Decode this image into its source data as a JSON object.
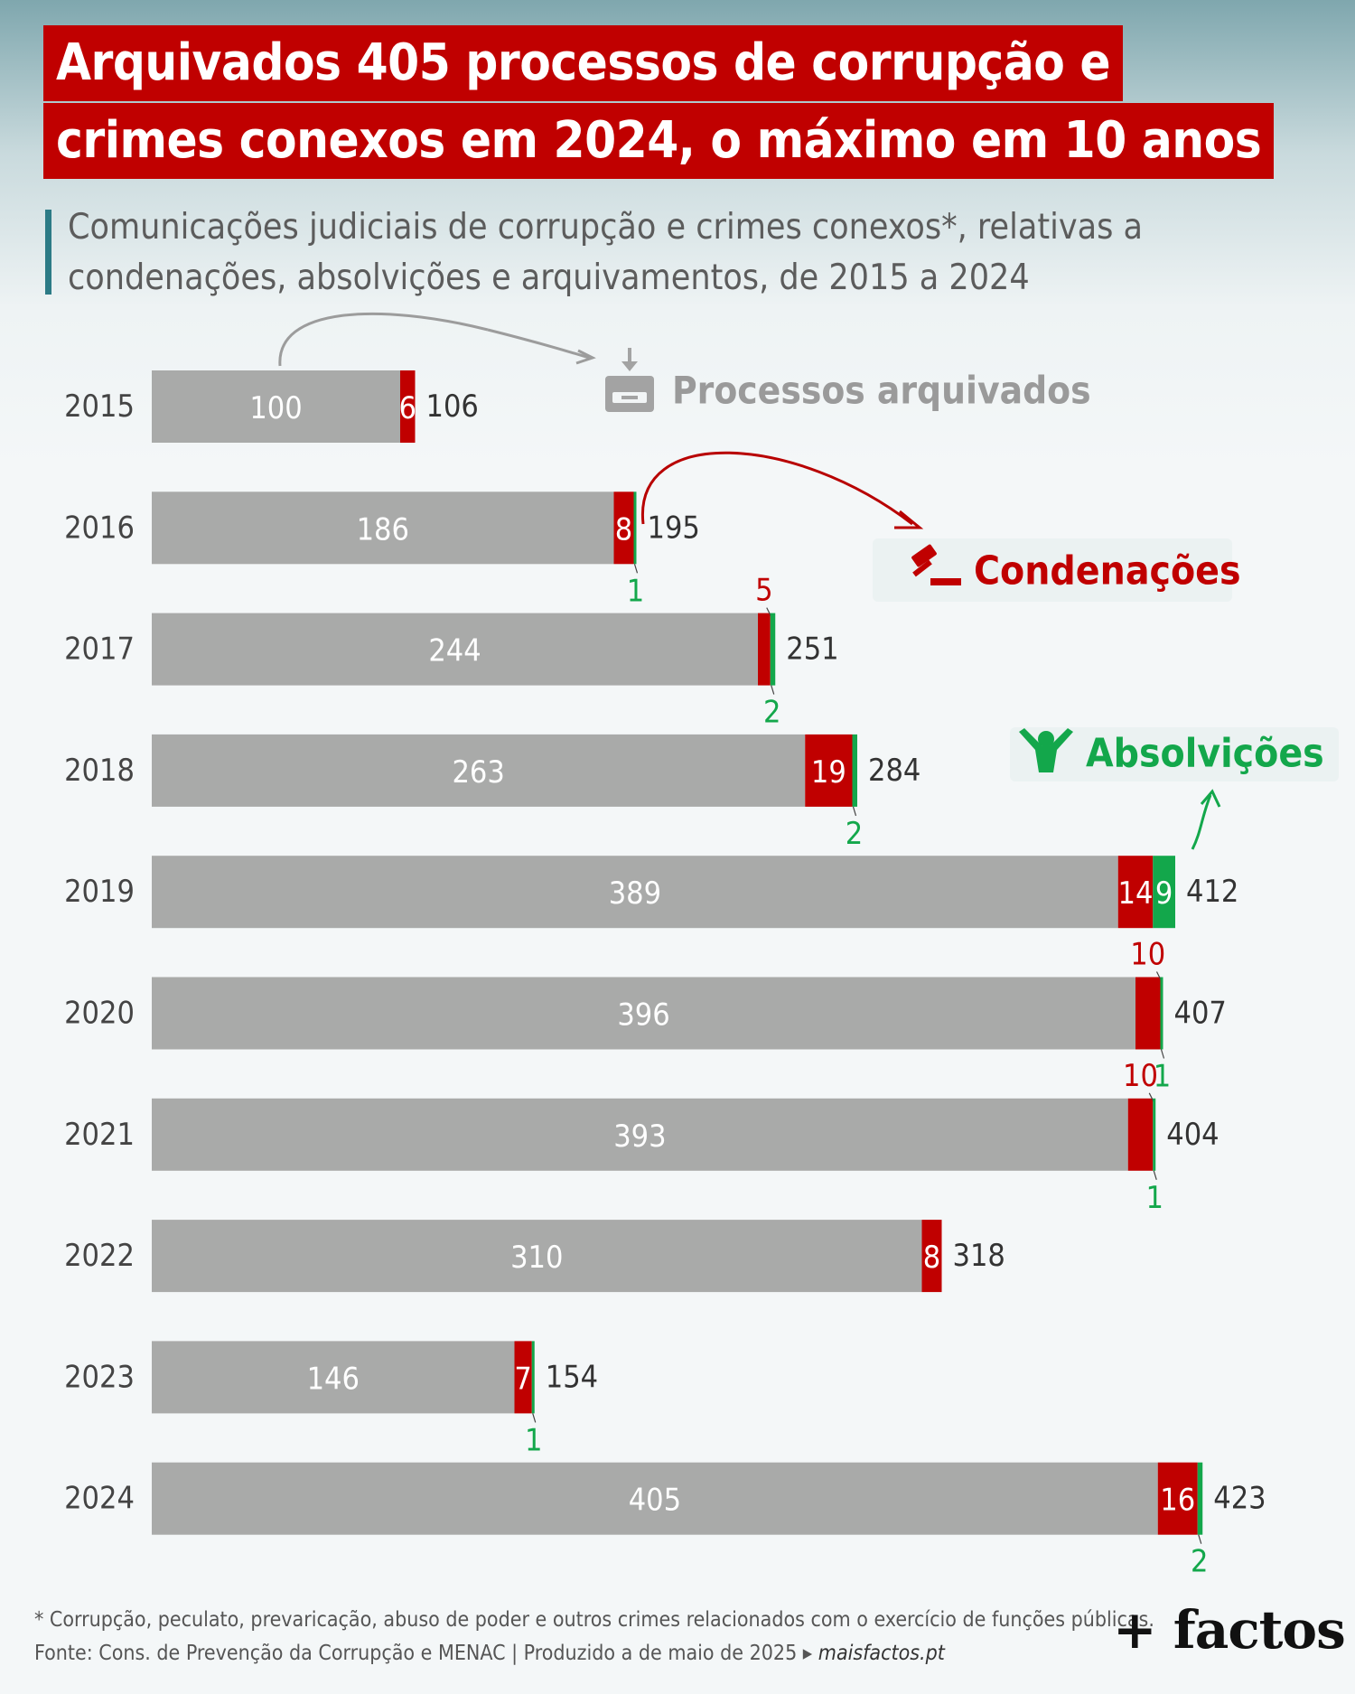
{
  "title": {
    "line1": "Arquivados 405 processos de corrupção e",
    "line2": "crimes conexos em 2024, o máximo em 10 anos"
  },
  "subtitle": "Comunicações judiciais de corrupção e crimes conexos*, relativas a condenações, absolvições e arquivamentos, de 2015 a 2024",
  "footnote": "* Corrupção, peculato, prevaricação, abuso de poder e outros crimes relacionados com o exercício de funções públicas.",
  "source": {
    "text": "Fonte: Cons. de Prevenção da Corrupção e MENAC  |  Produzido a  de maio de 2025 ▸ ",
    "site": "maisfactos.pt"
  },
  "brand": "+ factos",
  "colors": {
    "arquivados": "#a9aaa9",
    "condenacoes": "#c00000",
    "absolvicoes": "#13a74b",
    "total_text": "#333333"
  },
  "legend": {
    "arquivados": {
      "label": "Processos arquivados",
      "icon": "archive-box-icon"
    },
    "condenacoes": {
      "label": "Condenações",
      "icon": "gavel-icon"
    },
    "absolvicoes": {
      "label": "Absolvições",
      "icon": "person-raised-arms-icon"
    }
  },
  "chart_data": {
    "type": "bar",
    "orientation": "horizontal",
    "stacked": true,
    "categories": [
      "2015",
      "2016",
      "2017",
      "2018",
      "2019",
      "2020",
      "2021",
      "2022",
      "2023",
      "2024"
    ],
    "series": [
      {
        "name": "Processos arquivados",
        "values": [
          100,
          186,
          244,
          263,
          389,
          396,
          393,
          310,
          146,
          405
        ]
      },
      {
        "name": "Condenações",
        "values": [
          6,
          8,
          5,
          19,
          14,
          10,
          10,
          8,
          7,
          16
        ]
      },
      {
        "name": "Absolvições",
        "values": [
          0,
          1,
          2,
          2,
          9,
          1,
          1,
          0,
          1,
          2
        ]
      }
    ],
    "totals": [
      106,
      195,
      251,
      284,
      412,
      407,
      404,
      318,
      154,
      423
    ]
  }
}
